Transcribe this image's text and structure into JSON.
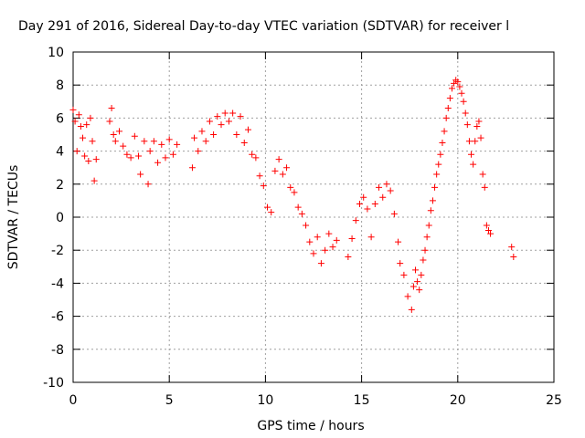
{
  "chart_data": {
    "type": "scatter",
    "title": "Day 291 of 2016, Sidereal Day-to-day VTEC variation (SDTVAR) for receiver l",
    "xlabel": "GPS time / hours",
    "ylabel": "SDTVAR / TECUs",
    "xlim": [
      0,
      25
    ],
    "ylim": [
      -10,
      10
    ],
    "xticks": [
      "0",
      "5",
      "10",
      "15",
      "20",
      "25"
    ],
    "yticks": [
      "-10",
      "-8",
      "-6",
      "-4",
      "-2",
      "0",
      "2",
      "4",
      "6",
      "8",
      "10"
    ],
    "grid": true,
    "marker": "+",
    "color": "#ff0000",
    "x": [
      0.0,
      0.1,
      0.2,
      0.3,
      0.4,
      0.5,
      0.6,
      0.7,
      0.8,
      0.9,
      1.0,
      1.1,
      1.2,
      1.9,
      2.0,
      2.1,
      2.2,
      2.4,
      2.6,
      2.8,
      3.0,
      3.2,
      3.4,
      3.5,
      3.7,
      3.9,
      4.0,
      4.2,
      4.4,
      4.6,
      4.8,
      5.0,
      5.2,
      5.4,
      6.2,
      6.3,
      6.5,
      6.7,
      6.9,
      7.1,
      7.3,
      7.5,
      7.7,
      7.9,
      8.1,
      8.3,
      8.5,
      8.7,
      8.9,
      9.1,
      9.3,
      9.5,
      9.7,
      9.9,
      10.1,
      10.3,
      10.5,
      10.7,
      10.9,
      11.1,
      11.3,
      11.5,
      11.7,
      11.9,
      12.1,
      12.3,
      12.5,
      12.7,
      12.9,
      13.1,
      13.3,
      13.5,
      13.7,
      14.3,
      14.5,
      14.7,
      14.9,
      15.1,
      15.3,
      15.5,
      15.7,
      15.9,
      16.1,
      16.3,
      16.5,
      16.7,
      16.9,
      17.0,
      17.2,
      17.4,
      17.6,
      17.7,
      17.8,
      17.9,
      18.0,
      18.1,
      18.2,
      18.3,
      18.4,
      18.5,
      18.6,
      18.7,
      18.8,
      18.9,
      19.0,
      19.1,
      19.2,
      19.3,
      19.4,
      19.5,
      19.6,
      19.7,
      19.8,
      19.9,
      20.0,
      20.1,
      20.2,
      20.3,
      20.4,
      20.5,
      20.6,
      20.7,
      20.8,
      20.9,
      21.0,
      21.1,
      21.2,
      21.3,
      21.4,
      21.5,
      21.6,
      21.7,
      22.8,
      22.9
    ],
    "values": [
      6.5,
      5.8,
      4.0,
      6.2,
      5.5,
      4.8,
      3.7,
      5.6,
      3.4,
      6.0,
      4.6,
      2.2,
      3.5,
      5.8,
      6.6,
      5.0,
      4.6,
      5.2,
      4.3,
      3.8,
      3.6,
      4.9,
      3.7,
      2.6,
      4.6,
      2.0,
      4.0,
      4.6,
      3.3,
      4.4,
      3.6,
      4.7,
      3.8,
      4.4,
      3.0,
      4.8,
      4.0,
      5.2,
      4.6,
      5.8,
      5.0,
      6.1,
      5.6,
      6.3,
      5.8,
      6.3,
      5.0,
      6.1,
      4.5,
      5.3,
      3.8,
      3.6,
      2.5,
      1.9,
      0.6,
      0.3,
      2.8,
      3.5,
      2.6,
      3.0,
      1.8,
      1.5,
      0.6,
      0.2,
      -0.5,
      -1.5,
      -2.2,
      -1.2,
      -2.8,
      -2.0,
      -1.0,
      -1.8,
      -1.4,
      -2.4,
      -1.3,
      -0.2,
      0.8,
      1.2,
      0.5,
      -1.2,
      0.8,
      1.8,
      1.2,
      2.0,
      1.6,
      0.2,
      -1.5,
      -2.8,
      -3.5,
      -4.8,
      -5.6,
      -4.2,
      -3.2,
      -3.9,
      -4.4,
      -3.5,
      -2.6,
      -2.0,
      -1.2,
      -0.5,
      0.4,
      1.0,
      1.8,
      2.6,
      3.2,
      3.8,
      4.5,
      5.2,
      6.0,
      6.6,
      7.2,
      7.8,
      8.1,
      8.3,
      8.2,
      7.9,
      7.5,
      7.0,
      6.3,
      5.6,
      4.6,
      3.8,
      3.2,
      4.6,
      5.5,
      5.8,
      4.8,
      2.6,
      1.8,
      -0.5,
      -0.8,
      -1.0,
      -1.8,
      -2.4
    ]
  }
}
